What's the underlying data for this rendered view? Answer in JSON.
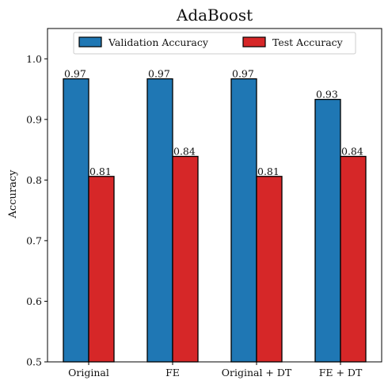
{
  "chart_data": {
    "type": "bar",
    "title": "AdaBoost",
    "xlabel": "",
    "ylabel": "Accuracy",
    "ylim": [
      0.5,
      1.05
    ],
    "yticks": [
      0.5,
      0.6,
      0.7,
      0.8,
      0.9,
      1.0
    ],
    "ytick_labels": [
      "0.5",
      "0.6",
      "0.7",
      "0.8",
      "0.9",
      "1.0"
    ],
    "categories": [
      "Original",
      "FE",
      "Original + DT",
      "FE + DT"
    ],
    "series": [
      {
        "name": "Validation Accuracy",
        "color": "#1f77b4",
        "values": [
          0.967,
          0.967,
          0.967,
          0.933
        ],
        "labels": [
          "0.97",
          "0.97",
          "0.97",
          "0.93"
        ]
      },
      {
        "name": "Test Accuracy",
        "color": "#d62728",
        "values": [
          0.806,
          0.839,
          0.806,
          0.839
        ],
        "labels": [
          "0.81",
          "0.84",
          "0.81",
          "0.84"
        ]
      }
    ],
    "legend_position": "top-center",
    "grid": false
  }
}
